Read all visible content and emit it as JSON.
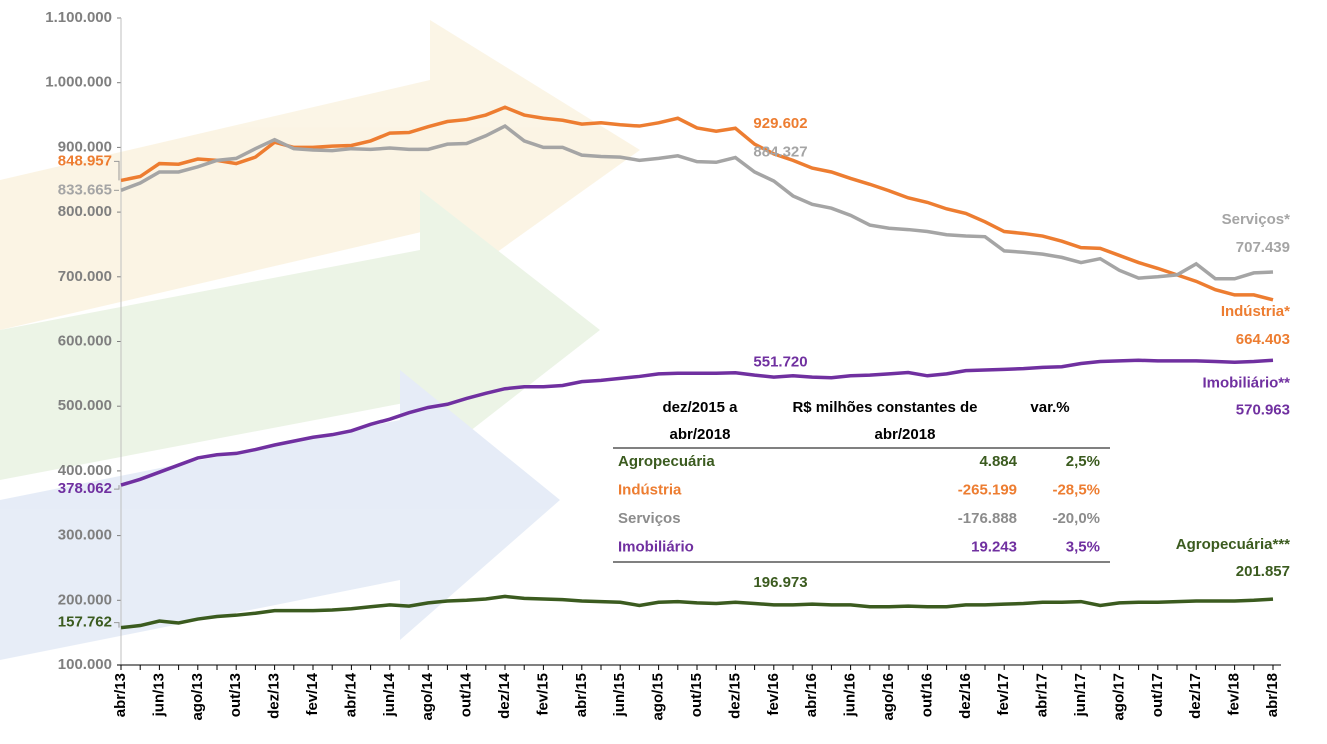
{
  "chart_data": {
    "type": "line",
    "categories": [
      "abr/13",
      null,
      "jun/13",
      null,
      "ago/13",
      null,
      "out/13",
      null,
      "dez/13",
      null,
      "fev/14",
      null,
      "abr/14",
      null,
      "jun/14",
      null,
      "ago/14",
      null,
      "out/14",
      null,
      "dez/14",
      null,
      "fev/15",
      null,
      "abr/15",
      null,
      "jun/15",
      null,
      "ago/15",
      null,
      "out/15",
      null,
      "dez/15",
      null,
      "fev/16",
      null,
      "abr/16",
      null,
      "jun/16",
      null,
      "ago/16",
      null,
      "out/16",
      null,
      "dez/16",
      null,
      "fev/17",
      null,
      "abr/17",
      null,
      "jun/17",
      null,
      "ago/17",
      null,
      "out/17",
      null,
      "dez/17",
      null,
      "fev/18",
      null,
      "abr/18"
    ],
    "ylim": [
      100000,
      1100000
    ],
    "yticks": [
      {
        "value": 100000,
        "label": "100.000"
      },
      {
        "value": 200000,
        "label": "200.000"
      },
      {
        "value": 300000,
        "label": "300.000"
      },
      {
        "value": 400000,
        "label": "400.000"
      },
      {
        "value": 500000,
        "label": "500.000"
      },
      {
        "value": 600000,
        "label": "600.000"
      },
      {
        "value": 700000,
        "label": "700.000"
      },
      {
        "value": 800000,
        "label": "800.000"
      },
      {
        "value": 900000,
        "label": "900.000"
      },
      {
        "value": 1000000,
        "label": "1.000.000"
      },
      {
        "value": 1100000,
        "label": "1.100.000"
      }
    ],
    "series": [
      {
        "name": "Indústria*",
        "color": "#ed7d31",
        "values": [
          848957,
          855000,
          875000,
          874000,
          882000,
          880000,
          875000,
          885000,
          908000,
          900000,
          900000,
          902000,
          903000,
          910000,
          922000,
          923000,
          932000,
          940000,
          943000,
          950000,
          962000,
          950000,
          945000,
          942000,
          936000,
          938000,
          935000,
          933000,
          938000,
          945000,
          930000,
          925000,
          929602,
          905000,
          890000,
          880000,
          868000,
          862000,
          852000,
          843000,
          833000,
          822000,
          815000,
          805000,
          798000,
          785000,
          770000,
          767000,
          763000,
          755000,
          745000,
          744000,
          733000,
          722000,
          713000,
          703000,
          693000,
          680000,
          672000,
          672000,
          664403
        ],
        "value_labels": [
          "848.957",
          null,
          null,
          null,
          null,
          null,
          null,
          null,
          null,
          null,
          null,
          null,
          null,
          null,
          null,
          null,
          null,
          null,
          null,
          null,
          null,
          null,
          null,
          null,
          null,
          null,
          null,
          null,
          null,
          null,
          null,
          null,
          "929.602",
          null,
          null,
          null,
          null,
          null,
          null,
          null,
          null,
          null,
          null,
          null,
          null,
          null,
          null,
          null,
          null,
          null,
          null,
          null,
          null,
          null,
          null,
          null,
          null,
          null,
          null,
          null,
          "664.403"
        ]
      },
      {
        "name": "Serviços*",
        "color": "#a5a5a5",
        "values": [
          833665,
          845000,
          862000,
          862000,
          870000,
          880000,
          883000,
          898000,
          912000,
          898000,
          896000,
          895000,
          898000,
          897000,
          899000,
          897000,
          897000,
          905000,
          906000,
          918000,
          933000,
          910000,
          900000,
          900000,
          888000,
          886000,
          885000,
          880000,
          883000,
          887000,
          878000,
          877000,
          884327,
          862000,
          848000,
          825000,
          812000,
          806000,
          795000,
          780000,
          775000,
          773000,
          770000,
          765000,
          763000,
          762000,
          740000,
          738000,
          735000,
          730000,
          722000,
          728000,
          710000,
          698000,
          700000,
          703000,
          720000,
          697000,
          697000,
          706000,
          707439
        ],
        "value_labels": [
          "833.665",
          null,
          null,
          null,
          null,
          null,
          null,
          null,
          null,
          null,
          null,
          null,
          null,
          null,
          null,
          null,
          null,
          null,
          null,
          null,
          null,
          null,
          null,
          null,
          null,
          null,
          null,
          null,
          null,
          null,
          null,
          null,
          "884.327",
          null,
          null,
          null,
          null,
          null,
          null,
          null,
          null,
          null,
          null,
          null,
          null,
          null,
          null,
          null,
          null,
          null,
          null,
          null,
          null,
          null,
          null,
          null,
          null,
          null,
          null,
          null,
          "707.439"
        ]
      },
      {
        "name": "Imobiliário**",
        "color": "#7030a0",
        "values": [
          378062,
          387000,
          398000,
          409000,
          420000,
          425000,
          427000,
          433000,
          440000,
          446000,
          452000,
          456000,
          462000,
          472000,
          480000,
          490000,
          498000,
          503000,
          512000,
          520000,
          527000,
          530000,
          530000,
          532000,
          538000,
          540000,
          543000,
          546000,
          550000,
          551000,
          551000,
          551000,
          551720,
          548000,
          545000,
          547000,
          545000,
          544000,
          547000,
          548000,
          550000,
          552000,
          547000,
          550000,
          555000,
          556000,
          557000,
          558000,
          560000,
          561000,
          566000,
          569000,
          570000,
          571000,
          570000,
          570000,
          570000,
          569000,
          568000,
          569000,
          570963
        ],
        "value_labels": [
          "378.062",
          null,
          null,
          null,
          null,
          null,
          null,
          null,
          null,
          null,
          null,
          null,
          null,
          null,
          null,
          null,
          null,
          null,
          null,
          null,
          null,
          null,
          null,
          null,
          null,
          null,
          null,
          null,
          null,
          null,
          null,
          null,
          "551.720",
          null,
          null,
          null,
          null,
          null,
          null,
          null,
          null,
          null,
          null,
          null,
          null,
          null,
          null,
          null,
          null,
          null,
          null,
          null,
          null,
          null,
          null,
          null,
          null,
          null,
          null,
          null,
          "570.963"
        ]
      },
      {
        "name": "Agropecuária***",
        "color": "#3b5b1f",
        "values": [
          157762,
          161000,
          168000,
          165000,
          171000,
          175000,
          177000,
          180000,
          184000,
          184000,
          184000,
          185000,
          187000,
          190000,
          193000,
          191000,
          196000,
          199000,
          200000,
          202000,
          206000,
          203000,
          202000,
          201000,
          199000,
          198000,
          197000,
          192000,
          197000,
          198000,
          196000,
          195000,
          196973,
          195000,
          193000,
          193000,
          194000,
          193000,
          193000,
          190000,
          190000,
          191000,
          190000,
          190000,
          193000,
          193000,
          194000,
          195000,
          197000,
          197000,
          198000,
          192000,
          196000,
          197000,
          197000,
          198000,
          199000,
          199000,
          199000,
          200000,
          201857
        ],
        "value_labels": [
          "157.762",
          null,
          null,
          null,
          null,
          null,
          null,
          null,
          null,
          null,
          null,
          null,
          null,
          null,
          null,
          null,
          null,
          null,
          null,
          null,
          null,
          null,
          null,
          null,
          null,
          null,
          null,
          null,
          null,
          null,
          null,
          null,
          "196.973",
          null,
          null,
          null,
          null,
          null,
          null,
          null,
          null,
          null,
          null,
          null,
          null,
          null,
          null,
          null,
          null,
          null,
          null,
          null,
          null,
          null,
          null,
          null,
          null,
          null,
          null,
          null,
          "201.857"
        ]
      }
    ],
    "table": {
      "header": [
        [
          "dez/2015 a",
          "abr/2018"
        ],
        [
          "R$ milhões constantes de",
          "abr/2018"
        ],
        [
          "var.%"
        ]
      ],
      "rows": [
        [
          "Agropecuária",
          "4.884",
          "2,5%"
        ],
        [
          "Indústria",
          "-265.199",
          "-28,5%"
        ],
        [
          "Serviços",
          "-176.888",
          "-20,0%"
        ],
        [
          "Imobiliário",
          "19.243",
          "3,5%"
        ]
      ]
    }
  }
}
